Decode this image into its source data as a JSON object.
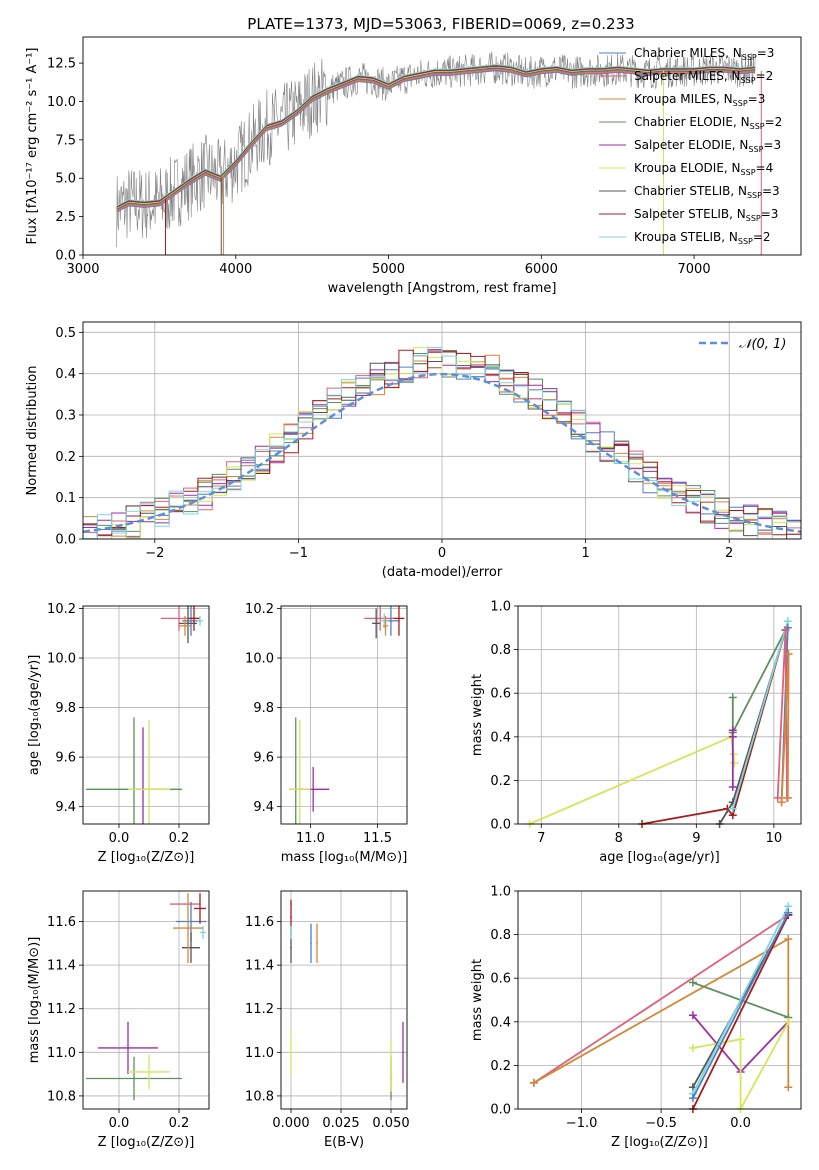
{
  "figure_title": "PLATE=1373, MJD=53063, FIBERID=0069, z=0.233",
  "legend_entries": [
    {
      "label": "Chabrier MILES, N",
      "sub": "SSP",
      "suffix": "=3",
      "color": "#4f7fc4"
    },
    {
      "label": "Salpeter MILES, N",
      "sub": "SSP",
      "suffix": "=2",
      "color": "#e0607a"
    },
    {
      "label": "Kroupa MILES, N",
      "sub": "SSP",
      "suffix": "=3",
      "color": "#d2883c"
    },
    {
      "label": "Chabrier ELODIE, N",
      "sub": "SSP",
      "suffix": "=2",
      "color": "#5e8f5e"
    },
    {
      "label": "Salpeter ELODIE, N",
      "sub": "SSP",
      "suffix": "=3",
      "color": "#9c2ea8"
    },
    {
      "label": "Kroupa ELODIE, N",
      "sub": "SSP",
      "suffix": "=4",
      "color": "#d4e55a"
    },
    {
      "label": "Chabrier STELIB, N",
      "sub": "SSP",
      "suffix": "=3",
      "color": "#555555"
    },
    {
      "label": "Salpeter STELIB, N",
      "sub": "SSP",
      "suffix": "=3",
      "color": "#a81c1c"
    },
    {
      "label": "Kroupa STELIB, N",
      "sub": "SSP",
      "suffix": "=2",
      "color": "#7fd6dc"
    }
  ],
  "chart_data": [
    {
      "id": "spectrum",
      "type": "line",
      "xlabel": "wavelength [Angstrom, rest frame]",
      "ylabel": "Flux [fλ10⁻¹⁷ erg cm⁻² s⁻¹ A⁻¹]",
      "xlim": [
        3000,
        7700
      ],
      "ylim": [
        0,
        14.2
      ],
      "xticks": [
        3000,
        4000,
        5000,
        6000,
        7000
      ],
      "yticks": [
        0.0,
        2.5,
        5.0,
        7.5,
        10.0,
        12.5
      ],
      "data_color": "#808080",
      "model_color": "#7fd6dc",
      "model_trace": {
        "x": [
          3220,
          3300,
          3400,
          3500,
          3600,
          3700,
          3800,
          3900,
          4000,
          4100,
          4200,
          4300,
          4400,
          4500,
          4600,
          4700,
          4800,
          4900,
          5000,
          5100,
          5200,
          5300,
          5400,
          5500,
          5600,
          5700,
          5800,
          5900,
          6000,
          6100,
          6200,
          6300,
          6400,
          6500,
          6600,
          6700,
          6800,
          6900,
          7000,
          7100,
          7200,
          7300,
          7400
        ],
        "y": [
          3.0,
          3.4,
          3.3,
          3.4,
          4.1,
          4.8,
          5.4,
          5.0,
          6.0,
          7.2,
          8.3,
          8.6,
          9.3,
          10.2,
          10.7,
          11.1,
          11.5,
          11.4,
          11.0,
          11.5,
          11.7,
          11.9,
          11.9,
          12.0,
          12.1,
          12.2,
          12.1,
          11.8,
          12.0,
          12.1,
          11.9,
          12.0,
          12.0,
          12.1,
          12.0,
          11.9,
          12.0,
          12.0,
          12.0,
          12.1,
          12.1,
          12.0,
          12.1
        ]
      }
    },
    {
      "id": "residuals",
      "type": "line",
      "xlabel": "(data-model)/error",
      "ylabel": "Normed distribution",
      "xlim": [
        -2.5,
        2.5
      ],
      "ylim": [
        0,
        0.525
      ],
      "xticks": [
        -2,
        -1,
        0,
        1,
        2
      ],
      "yticks": [
        0.0,
        0.1,
        0.2,
        0.3,
        0.4,
        0.5
      ],
      "series": [
        {
          "name": "𝒩(0, 1)",
          "mean": 0,
          "sigma": 1
        }
      ]
    },
    {
      "id": "age-vs-Z",
      "type": "scatter",
      "xlabel": "Z [log₁₀(Z/Z⊙)]",
      "ylabel": "age  [log₁₀(age/yr)]",
      "xlim": [
        -0.12,
        0.3
      ],
      "ylim": [
        9.33,
        10.21
      ],
      "xticks": [
        0.0,
        0.2
      ],
      "yticks": [
        9.4,
        9.6,
        9.8,
        10.0,
        10.2
      ],
      "points": [
        {
          "x": 0.2,
          "y": 10.16,
          "xerr": 0.06,
          "yerr": 0.05,
          "color": "#e0607a"
        },
        {
          "x": 0.24,
          "y": 10.15,
          "xerr": 0.03,
          "yerr": 0.06,
          "color": "#4f7fc4"
        },
        {
          "x": 0.25,
          "y": 10.16,
          "xerr": 0.02,
          "yerr": 0.05,
          "color": "#a81c1c"
        },
        {
          "x": 0.23,
          "y": 10.14,
          "xerr": 0.03,
          "yerr": 0.08,
          "color": "#555555"
        },
        {
          "x": 0.27,
          "y": 10.15,
          "xerr": 0.01,
          "yerr": 0.02,
          "color": "#7fd6dc"
        },
        {
          "x": 0.22,
          "y": 10.13,
          "xerr": 0.02,
          "yerr": 0.04,
          "color": "#d2883c"
        },
        {
          "x": 0.05,
          "y": 9.47,
          "xerr": 0.16,
          "yerr": 0.29,
          "color": "#5e8f5e"
        },
        {
          "x": 0.08,
          "y": 9.47,
          "xerr": 0.02,
          "yerr": 0.25,
          "color": "#9c2ea8"
        },
        {
          "x": 0.1,
          "y": 9.47,
          "xerr": 0.07,
          "yerr": 0.28,
          "color": "#d4e55a"
        }
      ]
    },
    {
      "id": "age-vs-mass",
      "type": "scatter",
      "xlabel": "mass [log₁₀(M/M⊙)]",
      "ylabel": "",
      "xlim": [
        10.78,
        11.72
      ],
      "ylim": [
        9.33,
        10.21
      ],
      "xticks": [
        11.0,
        11.5
      ],
      "yticks": [
        9.4,
        9.6,
        9.8,
        10.0,
        10.2
      ],
      "points": [
        {
          "x": 11.52,
          "y": 10.16,
          "xerr": 0.12,
          "yerr": 0.05,
          "color": "#e0607a"
        },
        {
          "x": 11.6,
          "y": 10.15,
          "xerr": 0.06,
          "yerr": 0.06,
          "color": "#4f7fc4"
        },
        {
          "x": 11.66,
          "y": 10.16,
          "xerr": 0.04,
          "yerr": 0.07,
          "color": "#a81c1c"
        },
        {
          "x": 11.49,
          "y": 10.14,
          "xerr": 0.03,
          "yerr": 0.06,
          "color": "#555555"
        },
        {
          "x": 11.55,
          "y": 10.15,
          "xerr": 0.03,
          "yerr": 0.03,
          "color": "#7fd6dc"
        },
        {
          "x": 11.56,
          "y": 10.13,
          "xerr": 0.02,
          "yerr": 0.04,
          "color": "#d2883c"
        },
        {
          "x": 10.89,
          "y": 9.47,
          "xerr": 0.05,
          "yerr": 0.29,
          "color": "#5e8f5e"
        },
        {
          "x": 11.02,
          "y": 9.47,
          "xerr": 0.12,
          "yerr": 0.09,
          "color": "#9c2ea8"
        },
        {
          "x": 10.92,
          "y": 9.47,
          "xerr": 0.08,
          "yerr": 0.28,
          "color": "#d4e55a"
        }
      ]
    },
    {
      "id": "weight-vs-age",
      "type": "line",
      "xlabel": "age  [log₁₀(age/yr)]",
      "ylabel": "mass weight",
      "xlim": [
        6.7,
        10.35
      ],
      "ylim": [
        0,
        1.0
      ],
      "xticks": [
        7,
        8,
        9,
        10
      ],
      "yticks": [
        0.0,
        0.2,
        0.4,
        0.6,
        0.8,
        1.0
      ],
      "series": [
        {
          "color": "#d4e55a",
          "x": [
            6.85,
            9.45,
            9.48,
            9.49
          ],
          "y": [
            0.0,
            0.4,
            0.32,
            0.28
          ]
        },
        {
          "color": "#a81c1c",
          "x": [
            8.3,
            9.4,
            9.47,
            10.15
          ],
          "y": [
            0.0,
            0.07,
            0.04,
            0.89
          ]
        },
        {
          "color": "#555555",
          "x": [
            9.3,
            9.47,
            10.15
          ],
          "y": [
            0.0,
            0.1,
            0.89
          ]
        },
        {
          "color": "#5e8f5e",
          "x": [
            9.47,
            9.47,
            10.15
          ],
          "y": [
            0.58,
            0.42,
            0.89
          ]
        },
        {
          "color": "#9c2ea8",
          "x": [
            9.47,
            9.47,
            9.47
          ],
          "y": [
            0.43,
            0.17,
            0.4
          ]
        },
        {
          "color": "#7fd6dc",
          "x": [
            9.47,
            10.18
          ],
          "y": [
            0.07,
            0.93
          ]
        },
        {
          "color": "#4f7fc4",
          "x": [
            10.1,
            10.18,
            10.15
          ],
          "y": [
            0.1,
            0.9,
            0.89
          ]
        },
        {
          "color": "#e0607a",
          "x": [
            10.05,
            10.15,
            10.17
          ],
          "y": [
            0.12,
            0.89,
            0.12
          ]
        },
        {
          "color": "#d2883c",
          "x": [
            10.1,
            10.19,
            10.18
          ],
          "y": [
            0.1,
            0.78,
            0.12
          ]
        }
      ]
    },
    {
      "id": "mass-vs-Z",
      "type": "scatter",
      "xlabel": "Z [log₁₀(Z/Z⊙)]",
      "ylabel": "mass [log₁₀(M/M⊙)]",
      "xlim": [
        -0.12,
        0.3
      ],
      "ylim": [
        10.74,
        11.74
      ],
      "xticks": [
        0.0,
        0.2
      ],
      "yticks": [
        10.8,
        11.0,
        11.2,
        11.4,
        11.6
      ],
      "points": [
        {
          "x": 0.22,
          "y": 11.68,
          "xerr": 0.05,
          "yerr": 0.0,
          "color": "#e0607a"
        },
        {
          "x": 0.24,
          "y": 11.6,
          "xerr": 0.05,
          "yerr": 0.09,
          "color": "#4f7fc4"
        },
        {
          "x": 0.27,
          "y": 11.66,
          "xerr": 0.02,
          "yerr": 0.07,
          "color": "#a81c1c"
        },
        {
          "x": 0.24,
          "y": 11.48,
          "xerr": 0.03,
          "yerr": 0.07,
          "color": "#555555"
        },
        {
          "x": 0.28,
          "y": 11.55,
          "xerr": 0.01,
          "yerr": 0.03,
          "color": "#7fd6dc"
        },
        {
          "x": 0.23,
          "y": 11.57,
          "xerr": 0.05,
          "yerr": 0.16,
          "color": "#d2883c"
        },
        {
          "x": 0.05,
          "y": 10.88,
          "xerr": 0.16,
          "yerr": 0.1,
          "color": "#5e8f5e"
        },
        {
          "x": 0.03,
          "y": 11.02,
          "xerr": 0.1,
          "yerr": 0.12,
          "color": "#9c2ea8"
        },
        {
          "x": 0.1,
          "y": 10.91,
          "xerr": 0.07,
          "yerr": 0.08,
          "color": "#d4e55a"
        }
      ]
    },
    {
      "id": "mass-vs-EBV",
      "type": "scatter",
      "xlabel": "E(B-V)",
      "ylabel": "",
      "xlim": [
        -0.005,
        0.058
      ],
      "ylim": [
        10.74,
        11.74
      ],
      "xticks": [
        0.0,
        0.025,
        0.05
      ],
      "xticklabels": [
        "0.000",
        "0.025",
        "0.050"
      ],
      "yticks": [
        10.8,
        11.0,
        11.2,
        11.4,
        11.6
      ],
      "points": [
        {
          "x": 0.0,
          "y": 11.68,
          "xerr": 0.0,
          "yerr": 0.0,
          "color": "#e0607a"
        },
        {
          "x": 0.0,
          "y": 11.62,
          "xerr": 0.0,
          "yerr": 0.08,
          "color": "#a81c1c"
        },
        {
          "x": 0.0,
          "y": 11.48,
          "xerr": 0.0,
          "yerr": 0.07,
          "color": "#555555"
        },
        {
          "x": 0.0,
          "y": 11.55,
          "xerr": 0.0,
          "yerr": 0.03,
          "color": "#7fd6dc"
        },
        {
          "x": 0.0,
          "y": 11.0,
          "xerr": 0.0,
          "yerr": 0.1,
          "color": "#d4e55a"
        },
        {
          "x": 0.01,
          "y": 11.5,
          "xerr": 0.0,
          "yerr": 0.09,
          "color": "#4f7fc4"
        },
        {
          "x": 0.013,
          "y": 11.5,
          "xerr": 0.0,
          "yerr": 0.09,
          "color": "#d2883c"
        },
        {
          "x": 0.05,
          "y": 10.88,
          "xerr": 0.0,
          "yerr": 0.1,
          "color": "#5e8f5e"
        },
        {
          "x": 0.05,
          "y": 10.94,
          "xerr": 0.0,
          "yerr": 0.12,
          "color": "#d4e55a"
        },
        {
          "x": 0.056,
          "y": 11.0,
          "xerr": 0.0,
          "yerr": 0.14,
          "color": "#9c2ea8"
        }
      ]
    },
    {
      "id": "weight-vs-Z",
      "type": "line",
      "xlabel": "Z [log₁₀(Z/Z⊙)]",
      "ylabel": "mass weight",
      "xlim": [
        -1.4,
        0.38
      ],
      "ylim": [
        0,
        1.0
      ],
      "xticks": [
        -1.0,
        -0.5,
        0.0
      ],
      "xticklabels": [
        "−1.0",
        "−0.5",
        "0.0"
      ],
      "yticks": [
        0.0,
        0.2,
        0.4,
        0.6,
        0.8,
        1.0
      ],
      "series": [
        {
          "color": "#e0607a",
          "x": [
            -1.3,
            0.3
          ],
          "y": [
            0.12,
            0.89
          ]
        },
        {
          "color": "#d2883c",
          "x": [
            -1.3,
            0.3,
            0.3
          ],
          "y": [
            0.12,
            0.78,
            0.1
          ]
        },
        {
          "color": "#5e8f5e",
          "x": [
            -0.3,
            0.3
          ],
          "y": [
            0.58,
            0.42
          ]
        },
        {
          "color": "#9c2ea8",
          "x": [
            -0.3,
            0.0,
            0.3
          ],
          "y": [
            0.43,
            0.17,
            0.4
          ]
        },
        {
          "color": "#d4e55a",
          "x": [
            -0.3,
            0.0,
            0.0,
            0.3
          ],
          "y": [
            0.28,
            0.32,
            0.0,
            0.4
          ]
        },
        {
          "color": "#555555",
          "x": [
            -0.3,
            0.3
          ],
          "y": [
            0.1,
            0.89
          ]
        },
        {
          "color": "#a81c1c",
          "x": [
            -0.3,
            0.3
          ],
          "y": [
            0.0,
            0.89
          ]
        },
        {
          "color": "#7fd6dc",
          "x": [
            -0.3,
            0.3
          ],
          "y": [
            0.07,
            0.93
          ]
        },
        {
          "color": "#4f7fc4",
          "x": [
            -0.3,
            0.3
          ],
          "y": [
            0.05,
            0.9
          ]
        }
      ]
    }
  ]
}
